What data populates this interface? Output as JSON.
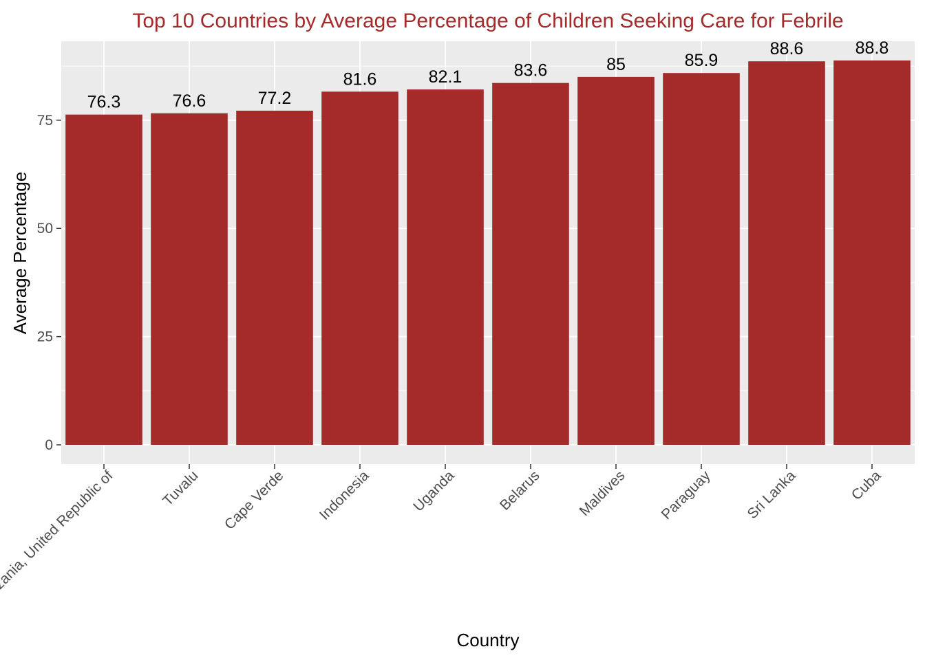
{
  "chart_data": {
    "type": "bar",
    "title": "Top 10 Countries by Average Percentage of Children Seeking Care for Febrile",
    "xlabel": "Country",
    "ylabel": "Average Percentage",
    "categories": [
      "Tanzania, United Republic of",
      "Tuvalu",
      "Cape Verde",
      "Indonesia",
      "Uganda",
      "Belarus",
      "Maldives",
      "Paraguay",
      "Sri Lanka",
      "Cuba"
    ],
    "values": [
      76.3,
      76.6,
      77.2,
      81.6,
      82.1,
      83.6,
      85,
      85.9,
      88.6,
      88.8
    ],
    "data_labels": [
      "76.3",
      "76.6",
      "77.2",
      "81.6",
      "82.1",
      "83.6",
      "85",
      "85.9",
      "88.6",
      "88.8"
    ],
    "yticks": [
      0,
      25,
      50,
      75
    ],
    "ytick_labels": [
      "0",
      "25",
      "50",
      "75"
    ],
    "ylim": [
      -4.44,
      93.24
    ],
    "grid": true,
    "legend": "none",
    "colors": {
      "bar": "#a52a2a",
      "title": "#a52a2a",
      "panel": "#ebebeb",
      "grid": "#ffffff"
    }
  }
}
